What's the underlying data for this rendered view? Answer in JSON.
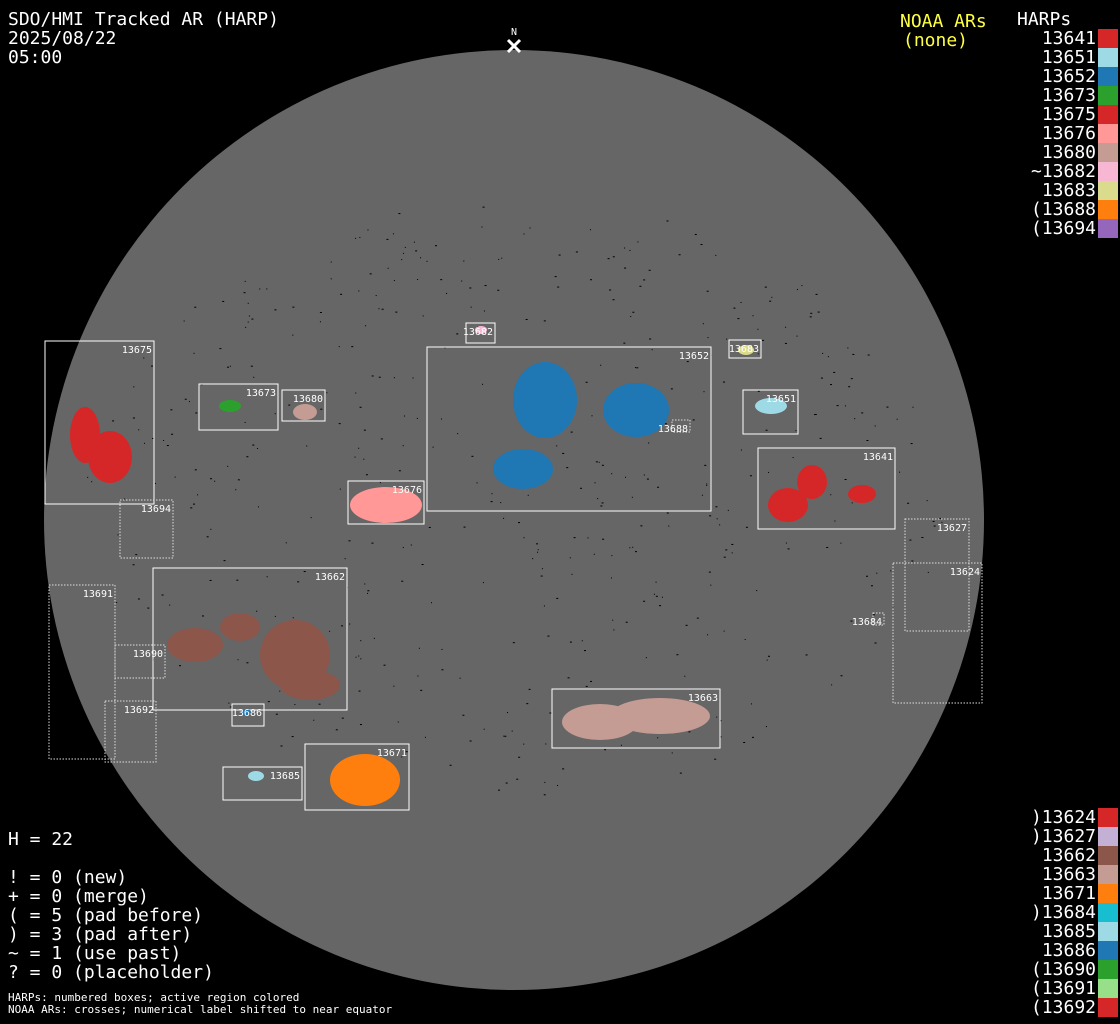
{
  "header": {
    "title": "SDO/HMI Tracked AR (HARP)",
    "date": "2025/08/22",
    "time": "05:00"
  },
  "north_label": "N",
  "noaa": {
    "title": "NOAA ARs",
    "value": "(none)",
    "color": "#ffff44"
  },
  "harps_title": "HARPs",
  "legend_top": [
    {
      "label": "13641",
      "color": "#d62728"
    },
    {
      "label": "13651",
      "color": "#9edae5"
    },
    {
      "label": "13652",
      "color": "#1f77b4"
    },
    {
      "label": "13673",
      "color": "#2ca02c"
    },
    {
      "label": "13675",
      "color": "#d62728"
    },
    {
      "label": "13676",
      "color": "#ff9896"
    },
    {
      "label": "13680",
      "color": "#c49c94"
    },
    {
      "label": "~13682",
      "color": "#f7b6d2"
    },
    {
      "label": "13683",
      "color": "#dbdb8d"
    },
    {
      "label": "(13688",
      "color": "#ff7f0e"
    },
    {
      "label": "(13694",
      "color": "#9467bd"
    }
  ],
  "legend_bottom": [
    {
      "label": ")13624",
      "color": "#d62728"
    },
    {
      "label": ")13627",
      "color": "#c5b0d5"
    },
    {
      "label": "13662",
      "color": "#8c564b"
    },
    {
      "label": "13663",
      "color": "#c49c94"
    },
    {
      "label": "13671",
      "color": "#ff7f0e"
    },
    {
      "label": ")13684",
      "color": "#17becf"
    },
    {
      "label": "13685",
      "color": "#9edae5"
    },
    {
      "label": "13686",
      "color": "#1f77b4"
    },
    {
      "label": "(13690",
      "color": "#2ca02c"
    },
    {
      "label": "(13691",
      "color": "#98df8a"
    },
    {
      "label": "(13692",
      "color": "#d62728"
    }
  ],
  "stats": {
    "count": "H = 22",
    "lines": [
      "! = 0 (new)",
      "+ = 0 (merge)",
      "( = 5 (pad before)",
      ") = 3 (pad after)",
      "~ = 1 (use past)",
      "? = 0 (placeholder)"
    ]
  },
  "footnotes": [
    "HARPs: numbered boxes; active region colored",
    "NOAA ARs: crosses; numerical label shifted to near equator"
  ],
  "disk_color": "#666666",
  "regions": [
    {
      "label": "13675",
      "color": "#d62728",
      "status": "active"
    },
    {
      "label": "13694",
      "color": "#9467bd",
      "status": "pad"
    },
    {
      "label": "13673",
      "color": "#2ca02c",
      "status": "active"
    },
    {
      "label": "13680",
      "color": "#c49c94",
      "status": "active"
    },
    {
      "label": "13682",
      "color": "#f7b6d2",
      "status": "active"
    },
    {
      "label": "13652",
      "color": "#1f77b4",
      "status": "active"
    },
    {
      "label": "13683",
      "color": "#dbdb8d",
      "status": "active"
    },
    {
      "label": "13651",
      "color": "#9edae5",
      "status": "active"
    },
    {
      "label": "13688",
      "color": "#ff7f0e",
      "status": "pad"
    },
    {
      "label": "13641",
      "color": "#d62728",
      "status": "active"
    },
    {
      "label": "13676",
      "color": "#ff9896",
      "status": "active"
    },
    {
      "label": "13627",
      "color": "#c5b0d5",
      "status": "pad"
    },
    {
      "label": "13624",
      "color": "#d62728",
      "status": "pad"
    },
    {
      "label": "13684",
      "color": "#17becf",
      "status": "pad"
    },
    {
      "label": "13691",
      "color": "#98df8a",
      "status": "pad"
    },
    {
      "label": "13662",
      "color": "#8c564b",
      "status": "active"
    },
    {
      "label": "13690",
      "color": "#2ca02c",
      "status": "pad"
    },
    {
      "label": "13692",
      "color": "#d62728",
      "status": "pad"
    },
    {
      "label": "13686",
      "color": "#1f77b4",
      "status": "active"
    },
    {
      "label": "13663",
      "color": "#c49c94",
      "status": "active"
    },
    {
      "label": "13671",
      "color": "#ff7f0e",
      "status": "active"
    },
    {
      "label": "13685",
      "color": "#9edae5",
      "status": "active"
    }
  ]
}
